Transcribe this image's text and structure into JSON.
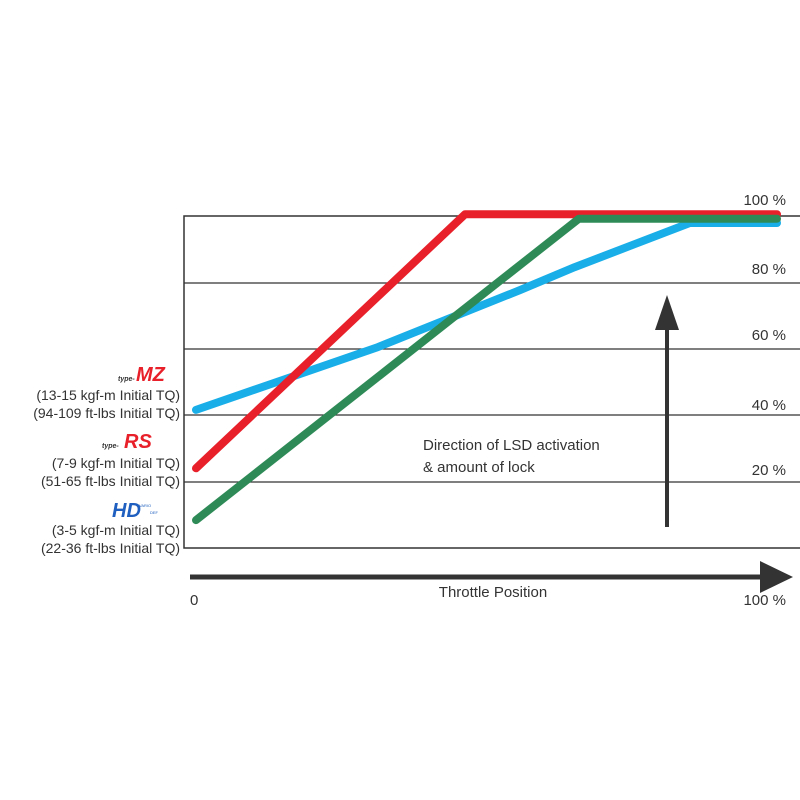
{
  "chart_data": {
    "type": "line",
    "xlabel": "Throttle Position",
    "x_ticks": [
      "0",
      "100 %"
    ],
    "y_ticks": [
      "20 %",
      "40 %",
      "60 %",
      "80 %",
      "100 %"
    ],
    "xlim": [
      0,
      100
    ],
    "ylim": [
      0,
      100
    ],
    "grid": true,
    "annotation": [
      "Direction of LSD activation",
      "& amount of lock"
    ],
    "series": [
      {
        "id": "mz",
        "color": "#19aee8",
        "points": [
          [
            0,
            41.6
          ],
          [
            16.4,
            51.5
          ],
          [
            31.3,
            60.5
          ],
          [
            55.8,
            77.7
          ],
          [
            65.2,
            84.6
          ],
          [
            85,
            97.9
          ],
          [
            100,
            97.9
          ]
        ]
      },
      {
        "id": "rs",
        "color": "#e8202a",
        "points": [
          [
            0,
            24
          ],
          [
            46.3,
            100.5
          ],
          [
            100,
            100.5
          ]
        ]
      },
      {
        "id": "hd",
        "color": "#2e8b57",
        "points": [
          [
            0,
            8.4
          ],
          [
            65.9,
            99.2
          ],
          [
            100,
            99.2
          ]
        ]
      }
    ]
  },
  "legend": [
    {
      "logo": "type-MZ",
      "line1": "(13-15 kgf-m Initial TQ)",
      "line2": "(94-109 ft-lbs Initial TQ)"
    },
    {
      "logo": "type-RS",
      "line1": "(7-9 kgf-m Initial TQ)",
      "line2": "(51-65 ft-lbs Initial TQ)"
    },
    {
      "logo": "HD VARIO",
      "line1": "(3-5 kgf-m Initial TQ)",
      "line2": "(22-36 ft-lbs Initial TQ)"
    }
  ]
}
